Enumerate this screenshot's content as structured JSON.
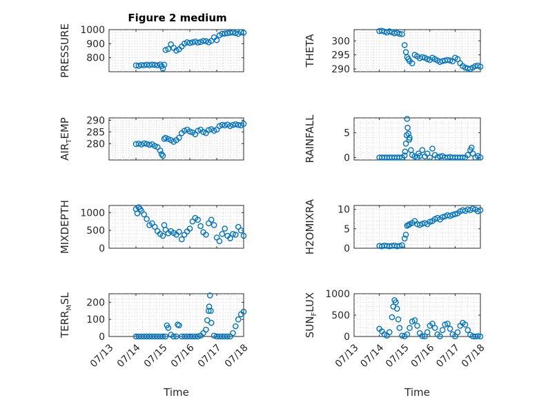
{
  "figure": {
    "title": "Figure 2 medium",
    "marker_color": "#0072BD",
    "axis_color": "#262626",
    "grid_color": "#d6d6d6"
  },
  "chart_data": [
    {
      "type": "scatter",
      "id": "pressure",
      "title": "Figure 2 medium",
      "ylabel": "PRESSURE",
      "xlabel": "",
      "xlim": [
        "07/13",
        "07/18"
      ],
      "ylim": [
        700,
        1000
      ],
      "yticks": [
        800,
        900,
        1000
      ],
      "xticks": [],
      "show_xtick_labels": false,
      "grid": true,
      "x": [
        14.0,
        14.1,
        14.2,
        14.3,
        14.4,
        14.5,
        14.6,
        14.7,
        14.8,
        14.9,
        14.95,
        15.0,
        15.05,
        15.1,
        15.2,
        15.3,
        15.4,
        15.5,
        15.6,
        15.7,
        15.8,
        15.9,
        16.0,
        16.1,
        16.2,
        16.3,
        16.4,
        16.5,
        16.6,
        16.7,
        16.8,
        16.9,
        17.0,
        17.1,
        17.2,
        17.3,
        17.4,
        17.5,
        17.6,
        17.7,
        17.8,
        17.9,
        18.0
      ],
      "y": [
        745,
        742,
        748,
        746,
        750,
        747,
        751,
        749,
        746,
        752,
        740,
        722,
        750,
        855,
        862,
        895,
        870,
        850,
        860,
        880,
        900,
        910,
        905,
        910,
        915,
        908,
        912,
        920,
        918,
        910,
        920,
        945,
        925,
        960,
        970,
        972,
        975,
        978,
        980,
        975,
        970,
        982,
        978
      ]
    },
    {
      "type": "scatter",
      "id": "theta",
      "title": "",
      "ylabel": "THETA",
      "xlabel": "",
      "xlim": [
        "07/13",
        "07/18"
      ],
      "ylim": [
        289,
        304
      ],
      "yticks": [
        290,
        295,
        300
      ],
      "xticks": [],
      "show_xtick_labels": false,
      "grid": true,
      "x": [
        14.0,
        14.1,
        14.2,
        14.3,
        14.4,
        14.5,
        14.6,
        14.7,
        14.8,
        14.9,
        15.0,
        15.05,
        15.1,
        15.15,
        15.2,
        15.3,
        15.4,
        15.5,
        15.6,
        15.7,
        15.8,
        15.9,
        16.0,
        16.1,
        16.2,
        16.3,
        16.4,
        16.5,
        16.6,
        16.7,
        16.8,
        16.9,
        17.0,
        17.1,
        17.2,
        17.3,
        17.4,
        17.5,
        17.6,
        17.7,
        17.8,
        17.9,
        18.0
      ],
      "y": [
        303.5,
        303.6,
        303.3,
        303.0,
        303.4,
        303.1,
        302.7,
        302.9,
        302.5,
        302.4,
        298.5,
        296.0,
        294.2,
        293.5,
        292.8,
        292.0,
        295.0,
        294.5,
        293.8,
        294.2,
        294.0,
        293.5,
        293.2,
        294.0,
        293.5,
        293.0,
        292.5,
        292.8,
        293.0,
        293.2,
        293.0,
        292.7,
        294.0,
        293.5,
        292.0,
        291.0,
        290.5,
        290.2,
        290.0,
        290.5,
        291.0,
        291.2,
        290.8
      ]
    },
    {
      "type": "scatter",
      "id": "air_temp",
      "title": "",
      "ylabel": "AIR",
      "ylabel_subscript": "T",
      "ylabel_suffix": "EMP",
      "xlabel": "",
      "xlim": [
        "07/13",
        "07/18"
      ],
      "ylim": [
        273,
        291
      ],
      "yticks": [
        280,
        285,
        290
      ],
      "xticks": [],
      "show_xtick_labels": false,
      "grid": true,
      "x": [
        14.0,
        14.1,
        14.2,
        14.3,
        14.4,
        14.5,
        14.6,
        14.7,
        14.8,
        14.9,
        14.95,
        15.0,
        15.05,
        15.1,
        15.2,
        15.3,
        15.4,
        15.5,
        15.6,
        15.7,
        15.8,
        15.9,
        16.0,
        16.1,
        16.2,
        16.3,
        16.4,
        16.5,
        16.6,
        16.7,
        16.8,
        16.9,
        17.0,
        17.1,
        17.2,
        17.3,
        17.4,
        17.5,
        17.6,
        17.7,
        17.8,
        17.9,
        18.0
      ],
      "y": [
        279.8,
        280.0,
        279.6,
        280.1,
        279.9,
        279.5,
        279.7,
        279.0,
        278.5,
        277.0,
        275.5,
        274.8,
        282.0,
        282.5,
        282.0,
        281.5,
        280.8,
        281.5,
        282.5,
        284.5,
        285.5,
        286.0,
        285.2,
        284.8,
        284.0,
        285.5,
        286.0,
        285.0,
        284.5,
        285.8,
        286.2,
        285.5,
        286.0,
        287.5,
        288.0,
        287.8,
        288.2,
        287.5,
        288.0,
        288.3,
        288.0,
        287.8,
        288.5
      ]
    },
    {
      "type": "scatter",
      "id": "rainfall",
      "title": "",
      "ylabel": "RAINFALL",
      "xlabel": "",
      "xlim": [
        "07/13",
        "07/18"
      ],
      "ylim": [
        -0.5,
        8
      ],
      "yticks": [
        0,
        5
      ],
      "xticks": [],
      "show_xtick_labels": false,
      "grid": true,
      "x": [
        14.0,
        14.1,
        14.2,
        14.3,
        14.4,
        14.5,
        14.6,
        14.7,
        14.8,
        14.9,
        15.0,
        15.02,
        15.05,
        15.08,
        15.1,
        15.12,
        15.15,
        15.18,
        15.2,
        15.25,
        15.3,
        15.4,
        15.5,
        15.55,
        15.6,
        15.7,
        15.8,
        15.9,
        16.0,
        16.1,
        16.2,
        16.3,
        16.4,
        16.5,
        16.6,
        16.7,
        16.8,
        16.9,
        17.0,
        17.1,
        17.2,
        17.3,
        17.4,
        17.5,
        17.6,
        17.65,
        17.7,
        17.8,
        17.9,
        18.0
      ],
      "y": [
        0,
        0,
        0,
        0,
        0,
        0,
        0,
        0,
        0,
        0,
        0.4,
        1.2,
        2.8,
        4.5,
        7.8,
        6.0,
        4.8,
        3.6,
        4.0,
        1.5,
        0.5,
        0.2,
        0,
        0.8,
        0.3,
        1.5,
        0.2,
        0.8,
        0,
        1.8,
        0.5,
        0,
        0.2,
        0.3,
        0,
        0,
        0.1,
        0,
        0,
        0,
        0,
        0,
        0,
        0.5,
        1.5,
        2.0,
        0.8,
        0,
        0.3,
        0
      ]
    },
    {
      "type": "scatter",
      "id": "mixdepth",
      "title": "",
      "ylabel": "MIXDEPTH",
      "xlabel": "",
      "xlim": [
        "07/13",
        "07/18"
      ],
      "ylim": [
        0,
        1200
      ],
      "yticks": [
        0,
        500,
        1000
      ],
      "xticks": [],
      "show_xtick_labels": false,
      "grid": true,
      "x": [
        14.0,
        14.05,
        14.1,
        14.15,
        14.2,
        14.3,
        14.4,
        14.5,
        14.6,
        14.7,
        14.8,
        14.9,
        15.0,
        15.05,
        15.1,
        15.2,
        15.3,
        15.4,
        15.5,
        15.6,
        15.7,
        15.8,
        15.9,
        16.0,
        16.1,
        16.2,
        16.3,
        16.4,
        16.5,
        16.6,
        16.7,
        16.8,
        16.9,
        17.0,
        17.1,
        17.2,
        17.3,
        17.4,
        17.5,
        17.6,
        17.7,
        17.8,
        17.9,
        18.0
      ],
      "y": [
        1100,
        980,
        1150,
        1100,
        1050,
        950,
        820,
        650,
        700,
        600,
        480,
        400,
        350,
        650,
        520,
        420,
        480,
        430,
        380,
        460,
        250,
        380,
        470,
        550,
        750,
        850,
        800,
        620,
        450,
        380,
        700,
        800,
        650,
        300,
        200,
        400,
        550,
        350,
        280,
        400,
        380,
        600,
        500,
        350
      ]
    },
    {
      "type": "scatter",
      "id": "h2omixra",
      "title": "",
      "ylabel": "H2OMIXRA",
      "xlabel": "",
      "xlim": [
        "07/13",
        "07/18"
      ],
      "ylim": [
        0,
        11
      ],
      "yticks": [
        0,
        5,
        10
      ],
      "xticks": [],
      "show_xtick_labels": false,
      "grid": true,
      "x": [
        14.0,
        14.1,
        14.2,
        14.3,
        14.4,
        14.5,
        14.6,
        14.7,
        14.8,
        14.9,
        15.0,
        15.05,
        15.1,
        15.15,
        15.2,
        15.3,
        15.4,
        15.5,
        15.6,
        15.7,
        15.8,
        15.9,
        16.0,
        16.1,
        16.2,
        16.3,
        16.4,
        16.5,
        16.6,
        16.7,
        16.8,
        16.9,
        17.0,
        17.1,
        17.2,
        17.3,
        17.4,
        17.5,
        17.6,
        17.7,
        17.8,
        17.9,
        18.0
      ],
      "y": [
        0.6,
        0.5,
        0.7,
        0.6,
        0.5,
        0.6,
        0.7,
        0.5,
        0.6,
        0.8,
        2.5,
        3.5,
        5.8,
        6.0,
        6.2,
        6.5,
        7.0,
        6.2,
        6.0,
        6.3,
        6.5,
        6.2,
        6.8,
        7.0,
        7.5,
        7.8,
        7.4,
        8.0,
        8.2,
        8.5,
        8.3,
        8.6,
        8.8,
        9.0,
        9.5,
        9.8,
        9.6,
        10.0,
        9.8,
        10.2,
        10.0,
        9.5,
        9.8
      ]
    },
    {
      "type": "scatter",
      "id": "terr_msl",
      "title": "",
      "ylabel": "TERR",
      "ylabel_subscript": "M",
      "ylabel_suffix": "SL",
      "xlabel": "Time",
      "xlim": [
        "07/13",
        "07/18"
      ],
      "ylim": [
        0,
        250
      ],
      "yticks": [
        0,
        100,
        200
      ],
      "xticks": [
        "07/13",
        "07/14",
        "07/15",
        "07/16",
        "07/17",
        "07/18"
      ],
      "show_xtick_labels": true,
      "grid": true,
      "x": [
        14.0,
        14.1,
        14.2,
        14.3,
        14.4,
        14.5,
        14.6,
        14.7,
        14.8,
        14.9,
        15.0,
        15.1,
        15.15,
        15.2,
        15.3,
        15.4,
        15.5,
        15.55,
        15.6,
        15.7,
        15.8,
        15.9,
        16.0,
        16.1,
        16.2,
        16.3,
        16.4,
        16.5,
        16.6,
        16.65,
        16.7,
        16.72,
        16.75,
        16.78,
        16.8,
        16.9,
        17.0,
        17.1,
        17.2,
        17.3,
        17.4,
        17.5,
        17.6,
        17.7,
        17.8,
        17.9,
        18.0
      ],
      "y": [
        0,
        0,
        0,
        0,
        0,
        0,
        0,
        0,
        0,
        0,
        0,
        0,
        65,
        50,
        10,
        0,
        0,
        70,
        65,
        0,
        0,
        0,
        0,
        0,
        0,
        0,
        5,
        20,
        40,
        95,
        150,
        175,
        240,
        150,
        80,
        5,
        0,
        0,
        0,
        0,
        0,
        0,
        20,
        60,
        100,
        130,
        145
      ]
    },
    {
      "type": "scatter",
      "id": "sun_flux",
      "title": "",
      "ylabel": "SUN",
      "ylabel_subscript": "F",
      "ylabel_suffix": "LUX",
      "xlabel": "Time",
      "xlim": [
        "07/13",
        "07/18"
      ],
      "ylim": [
        0,
        1000
      ],
      "yticks": [
        0,
        500,
        1000
      ],
      "xticks": [
        "07/13",
        "07/14",
        "07/15",
        "07/16",
        "07/17",
        "07/18"
      ],
      "show_xtick_labels": true,
      "grid": true,
      "x": [
        14.0,
        14.1,
        14.2,
        14.3,
        14.4,
        14.5,
        14.55,
        14.6,
        14.65,
        14.7,
        14.75,
        14.8,
        14.9,
        15.0,
        15.1,
        15.2,
        15.3,
        15.4,
        15.5,
        15.6,
        15.7,
        15.8,
        15.9,
        16.0,
        16.1,
        16.2,
        16.3,
        16.4,
        16.5,
        16.6,
        16.7,
        16.8,
        16.9,
        17.0,
        17.1,
        17.2,
        17.3,
        17.4,
        17.5,
        17.6,
        17.7,
        17.8,
        17.9,
        18.0
      ],
      "y": [
        180,
        120,
        50,
        20,
        100,
        450,
        700,
        850,
        800,
        650,
        400,
        200,
        20,
        5,
        50,
        200,
        350,
        380,
        250,
        80,
        10,
        5,
        100,
        250,
        300,
        200,
        50,
        5,
        150,
        280,
        300,
        180,
        50,
        5,
        100,
        250,
        320,
        280,
        150,
        40,
        5,
        0,
        10,
        0
      ]
    }
  ]
}
